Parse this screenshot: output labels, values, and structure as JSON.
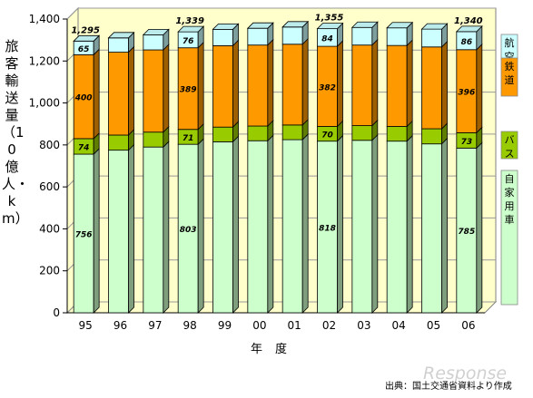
{
  "chart_data": {
    "type": "bar",
    "stacked": true,
    "categories": [
      "95",
      "96",
      "97",
      "98",
      "99",
      "00",
      "01",
      "02",
      "03",
      "04",
      "05",
      "06"
    ],
    "series": [
      {
        "name": "自家用車",
        "color": "#ccffcc",
        "values": [
          756,
          775,
          790,
          803,
          815,
          820,
          825,
          818,
          822,
          818,
          805,
          785
        ]
      },
      {
        "name": "バス",
        "color": "#99cc00",
        "values": [
          74,
          72,
          71,
          71,
          70,
          70,
          70,
          70,
          70,
          70,
          72,
          73
        ]
      },
      {
        "name": "鉄道",
        "color": "#ff9900",
        "values": [
          400,
          395,
          392,
          389,
          388,
          386,
          385,
          382,
          384,
          386,
          390,
          396
        ]
      },
      {
        "name": "航空",
        "color": "#ccffff",
        "values": [
          65,
          68,
          72,
          76,
          78,
          80,
          82,
          84,
          84,
          84,
          85,
          86
        ]
      }
    ],
    "totals": [
      1295,
      null,
      null,
      1339,
      null,
      null,
      null,
      1355,
      null,
      null,
      null,
      1340
    ],
    "data_labels": [
      {
        "series": "自家用車",
        "index": 0,
        "text": "756"
      },
      {
        "series": "バス",
        "index": 0,
        "text": "74"
      },
      {
        "series": "鉄道",
        "index": 0,
        "text": "400"
      },
      {
        "series": "航空",
        "index": 0,
        "text": "65"
      },
      {
        "series": "自家用車",
        "index": 3,
        "text": "803"
      },
      {
        "series": "バス",
        "index": 3,
        "text": "71"
      },
      {
        "series": "鉄道",
        "index": 3,
        "text": "389"
      },
      {
        "series": "航空",
        "index": 3,
        "text": "76"
      },
      {
        "series": "自家用車",
        "index": 7,
        "text": "818"
      },
      {
        "series": "バス",
        "index": 7,
        "text": "70"
      },
      {
        "series": "鉄道",
        "index": 7,
        "text": "382"
      },
      {
        "series": "航空",
        "index": 7,
        "text": "84"
      },
      {
        "series": "自家用車",
        "index": 11,
        "text": "785"
      },
      {
        "series": "バス",
        "index": 11,
        "text": "73"
      },
      {
        "series": "鉄道",
        "index": 11,
        "text": "396"
      },
      {
        "series": "航空",
        "index": 11,
        "text": "86"
      }
    ],
    "total_labels": [
      "1,295",
      "",
      "",
      "1,339",
      "",
      "",
      "",
      "1,355",
      "",
      "",
      "",
      "1,340"
    ],
    "yticks": [
      "0",
      "200",
      "400",
      "600",
      "800",
      "1,000",
      "1,200",
      "1,400"
    ],
    "ylim": [
      0,
      1400
    ],
    "ylabel": "旅客輸送量（10億人・km）",
    "xlabel": "年度",
    "legend_position": "right",
    "grid": true
  },
  "source_note": "出典：国土交通省資料より作成",
  "watermark": "Response"
}
